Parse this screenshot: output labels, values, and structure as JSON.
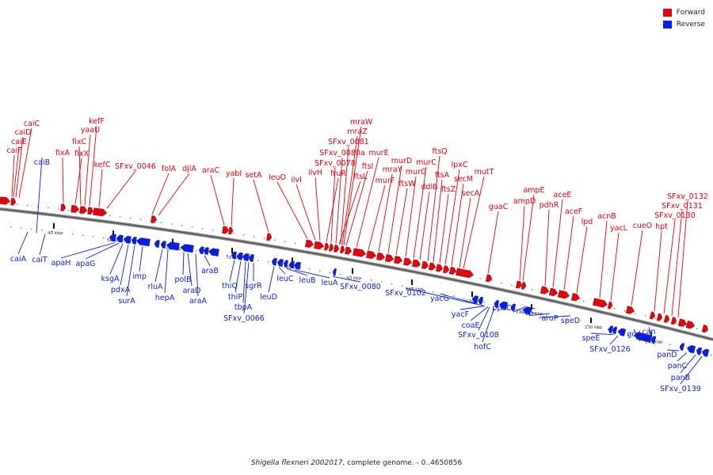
{
  "legend": {
    "forward_label": "Forward",
    "reverse_label": "Reverse",
    "forward_color": "#e8000b",
    "reverse_color": "#0a1de6"
  },
  "caption": {
    "organism": "Shigella flexneri 2002017",
    "rest": ", complete genome. - 0..4650856"
  },
  "scale_labels": [
    "40 kbp",
    "50 kbp",
    "60 kbp",
    "70 kbp",
    "80 kbp",
    "90 kbp",
    "100 kbp",
    "110 kbp",
    "120 kbp",
    "130 kbp",
    "140 kbp"
  ],
  "forward_genes": [
    "caiF",
    "caiE",
    "caiD",
    "caiC",
    "fixA",
    "fixX",
    "fixC",
    "yaaU",
    "kefF",
    "kefC",
    "SFxv_0046",
    "folA",
    "djlA",
    "araC",
    "yabI",
    "setA",
    "leuO",
    "ilvI",
    "ilvH",
    "fruR",
    "SFxv_0078",
    "SFxv_0080a",
    "ftsL",
    "SFxv_0081",
    "mraZ",
    "mraW",
    "ftsI",
    "murE",
    "murF",
    "mraY",
    "murD",
    "ftsW",
    "murG",
    "murC",
    "ddlB",
    "ftsQ",
    "ftsA",
    "ftsZ",
    "lpxC",
    "secM",
    "secA",
    "mutT",
    "guaC",
    "ampD",
    "ampE",
    "pdhR",
    "aceE",
    "aceF",
    "lpd",
    "acnB",
    "yacL",
    "cueO",
    "hpt",
    "SFxv_0130",
    "SFxv_0131",
    "SFxv_0132"
  ],
  "reverse_genes": [
    "caiB",
    "caiA",
    "caiT",
    "apaH",
    "apaG",
    "ksgA",
    "pdxA",
    "surA",
    "imp",
    "rluA",
    "hepA",
    "polB",
    "araD",
    "araA",
    "araB",
    "thiQ",
    "thiP",
    "tbpA",
    "SFxv_0066",
    "sgrR",
    "leuD",
    "leuC",
    "leuB",
    "leuA",
    "SFxv_0080",
    "SFxv_0102",
    "yacG",
    "yacF",
    "coaE",
    "SFxv_0108",
    "hofC",
    "ppdD",
    "nadC",
    "aroP",
    "speD",
    "speE",
    "SFxv_0126",
    "gcd",
    "can",
    "panD",
    "panC",
    "panB",
    "SFxv_0139"
  ]
}
